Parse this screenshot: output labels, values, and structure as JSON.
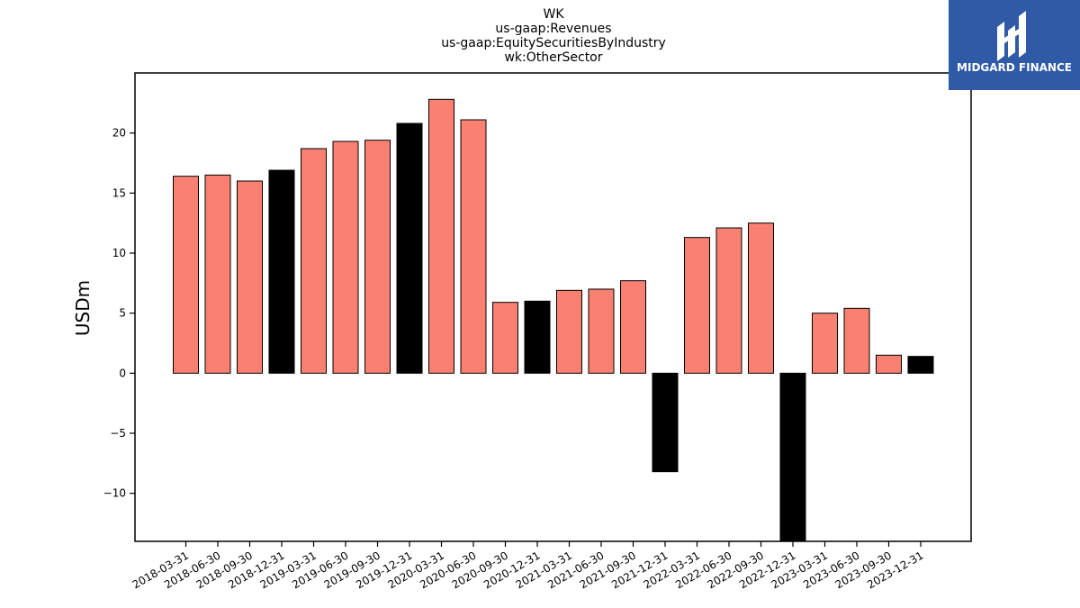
{
  "logo": {
    "text": "MIDGARD FINANCE"
  },
  "chart_data": {
    "type": "bar",
    "title_lines": [
      "WK",
      "us-gaap:Revenues",
      "us-gaap:EquitySecuritiesByIndustry",
      "wk:OtherSector"
    ],
    "xlabel": "",
    "ylabel": "USDm",
    "ylim": [
      -14,
      25
    ],
    "yticks": [
      -10,
      -5,
      0,
      5,
      10,
      15,
      20
    ],
    "ytick_labels": [
      "−10",
      "−5",
      "0",
      "5",
      "10",
      "15",
      "20"
    ],
    "grid": false,
    "colors": {
      "quarter": "#fa8072",
      "year_end": "#000000",
      "edge": "#000000"
    },
    "categories": [
      "2018-03-31",
      "2018-06-30",
      "2018-09-30",
      "2018-12-31",
      "2019-03-31",
      "2019-06-30",
      "2019-09-30",
      "2019-12-31",
      "2020-03-31",
      "2020-06-30",
      "2020-09-30",
      "2020-12-31",
      "2021-03-31",
      "2021-06-30",
      "2021-09-30",
      "2021-12-31",
      "2022-03-31",
      "2022-06-30",
      "2022-09-30",
      "2022-12-31",
      "2023-03-31",
      "2023-06-30",
      "2023-09-30",
      "2023-12-31"
    ],
    "values": [
      16.4,
      16.5,
      16.0,
      16.9,
      18.7,
      19.3,
      19.4,
      20.8,
      22.8,
      21.1,
      5.9,
      6.0,
      6.9,
      7.0,
      7.7,
      -8.2,
      11.3,
      12.1,
      12.5,
      -14.0,
      5.0,
      5.4,
      1.5,
      1.4
    ],
    "bar_colors": [
      "quarter",
      "quarter",
      "quarter",
      "year_end",
      "quarter",
      "quarter",
      "quarter",
      "year_end",
      "quarter",
      "quarter",
      "quarter",
      "year_end",
      "quarter",
      "quarter",
      "quarter",
      "year_end",
      "quarter",
      "quarter",
      "quarter",
      "year_end",
      "quarter",
      "quarter",
      "quarter",
      "year_end"
    ]
  }
}
